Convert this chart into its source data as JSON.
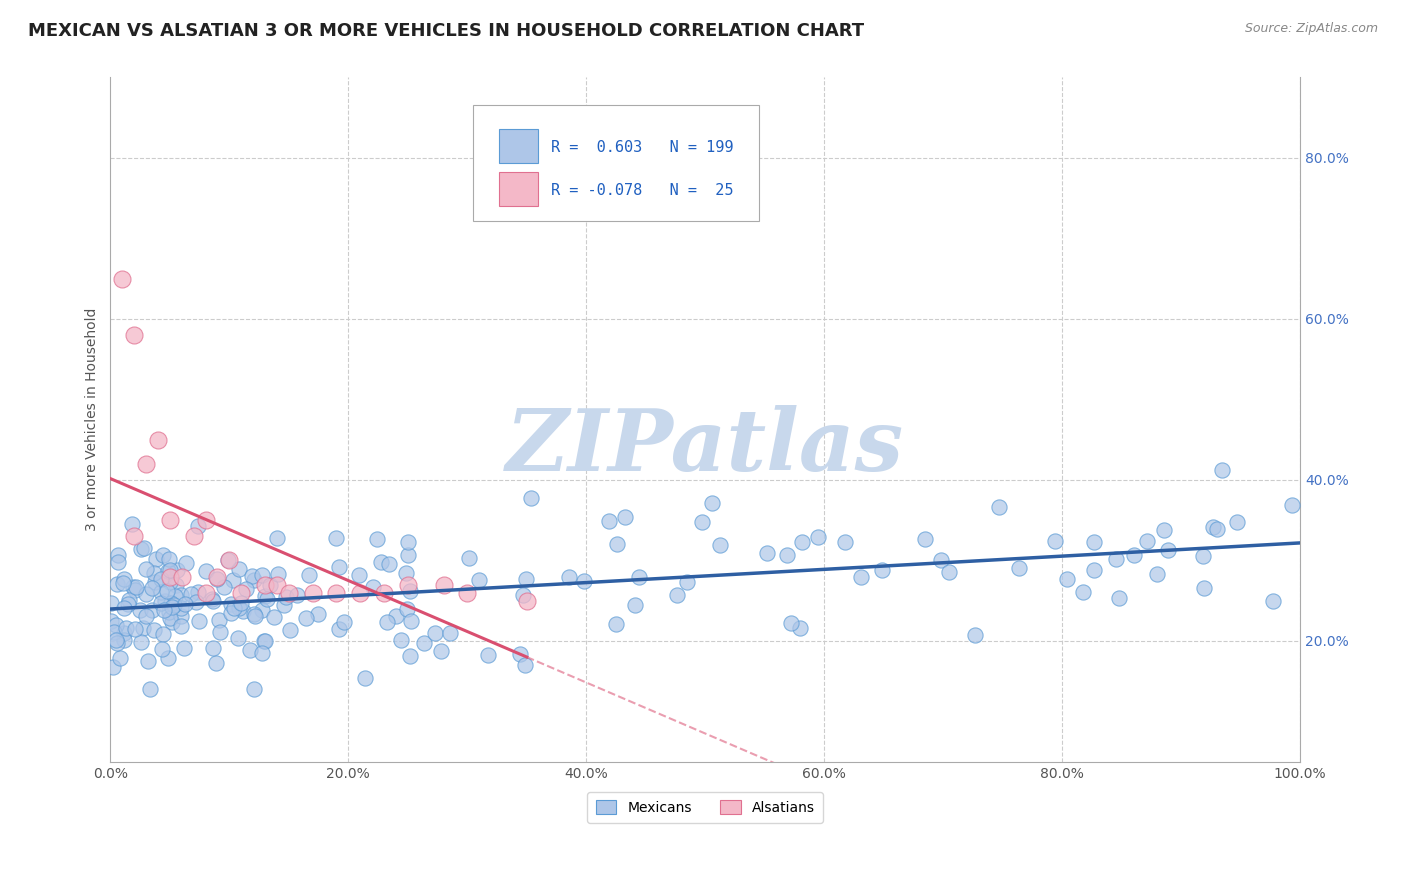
{
  "title": "MEXICAN VS ALSATIAN 3 OR MORE VEHICLES IN HOUSEHOLD CORRELATION CHART",
  "source_text": "Source: ZipAtlas.com",
  "ylabel": "3 or more Vehicles in Household",
  "xlim": [
    0,
    100
  ],
  "ylim": [
    5,
    90
  ],
  "x_tick_positions": [
    0,
    20,
    40,
    60,
    80,
    100
  ],
  "x_tick_labels": [
    "0.0%",
    "20.0%",
    "40.0%",
    "60.0%",
    "80.0%",
    "100.0%"
  ],
  "y_tick_positions": [
    20,
    40,
    60,
    80
  ],
  "y_tick_labels": [
    "20.0%",
    "40.0%",
    "60.0%",
    "80.0%"
  ],
  "mexican_fill_color": "#aec6e8",
  "mexican_edge_color": "#5b9bd5",
  "alsatian_fill_color": "#f4b8c8",
  "alsatian_edge_color": "#e07090",
  "mexican_line_color": "#2e5fa3",
  "alsatian_solid_color": "#d94f70",
  "alsatian_dash_color": "#f4b8c8",
  "R_mexican": 0.603,
  "N_mexican": 199,
  "R_alsatian": -0.078,
  "N_alsatian": 25,
  "watermark": "ZIPatlas",
  "watermark_color": "#c8d8ec",
  "background_color": "#ffffff",
  "grid_color": "#cccccc",
  "title_fontsize": 13,
  "axis_label_fontsize": 10,
  "tick_fontsize": 10,
  "legend_label1": "Mexicans",
  "legend_label2": "Alsatians"
}
